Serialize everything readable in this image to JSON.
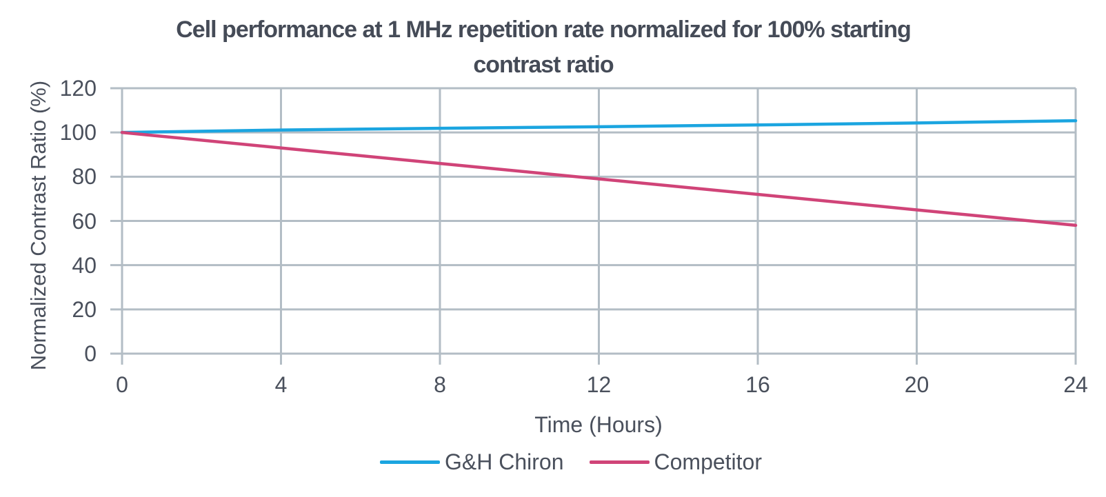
{
  "chart_data": {
    "type": "line",
    "title": "Cell performance at 1 MHz repetition rate normalized for 100% starting contrast ratio",
    "title_lines": [
      "Cell performance at 1 MHz repetition rate normalized for 100% starting",
      "contrast ratio"
    ],
    "xlabel": "Time (Hours)",
    "ylabel": "Normalized Contrast Ratio (%)",
    "x": [
      0,
      4,
      8,
      12,
      16,
      20,
      24
    ],
    "x_ticks": [
      0,
      4,
      8,
      12,
      16,
      20,
      24
    ],
    "y_ticks": [
      0,
      20,
      40,
      60,
      80,
      100,
      120
    ],
    "xlim": [
      0,
      24
    ],
    "ylim": [
      0,
      120
    ],
    "grid": true,
    "legend_position": "bottom-center",
    "series": [
      {
        "name": "G&H Chiron",
        "color": "#1ba5e0",
        "values": [
          100,
          101.1,
          101.9,
          102.6,
          103.4,
          104.3,
          105.3
        ]
      },
      {
        "name": "Competitor",
        "color": "#d04478",
        "values": [
          100,
          93,
          86,
          79,
          72,
          65,
          58
        ]
      }
    ],
    "colors": {
      "grid": "#b3bdc5",
      "text": "#4a505c",
      "title": "#454b57"
    }
  }
}
